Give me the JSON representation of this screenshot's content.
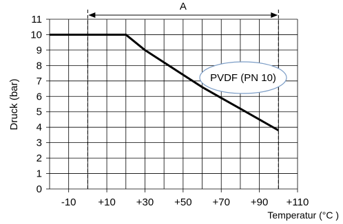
{
  "chart_data": {
    "type": "line",
    "xlabel": "Temperatur (°C )",
    "ylabel": "Druck (bar)",
    "xlim": [
      -20,
      110
    ],
    "ylim": [
      0,
      11
    ],
    "grid": true,
    "x_ticks": [
      -10,
      10,
      30,
      50,
      70,
      90,
      110
    ],
    "x_tick_labels": [
      "-10",
      "+10",
      "+30",
      "+50",
      "+70",
      "+90",
      "+110"
    ],
    "y_ticks": [
      0,
      1,
      2,
      3,
      4,
      5,
      6,
      7,
      8,
      9,
      10,
      11
    ],
    "y_tick_labels": [
      "0",
      "1",
      "2",
      "3",
      "4",
      "5",
      "6",
      "7",
      "8",
      "9",
      "10",
      "11"
    ],
    "series": [
      {
        "name": "PVDF (PN 10)",
        "x": [
          -20,
          20,
          30,
          40,
          50,
          60,
          70,
          80,
          90,
          100
        ],
        "y": [
          10,
          10,
          9.0,
          8.2,
          7.4,
          6.6,
          5.9,
          5.2,
          4.5,
          3.8
        ]
      }
    ],
    "range_annotation": {
      "label": "A",
      "x_from": 0,
      "x to": 100
    }
  },
  "colors": {
    "line": "#000000",
    "grid": "#000000",
    "callout_border": "#7a9cc6",
    "background": "#ffffff"
  }
}
